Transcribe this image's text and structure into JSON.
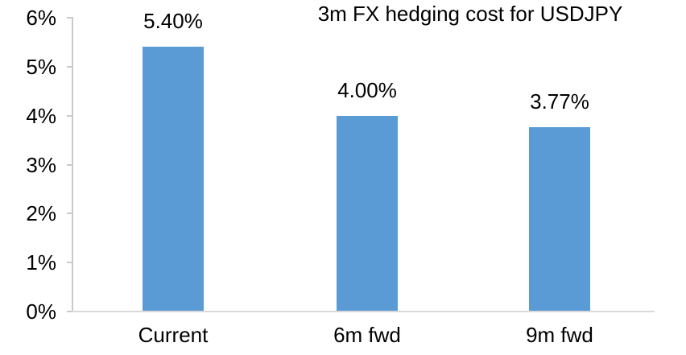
{
  "chart_data": {
    "type": "bar",
    "title": "3m FX hedging cost for USDJPY",
    "categories": [
      "Current",
      "6m fwd",
      "9m fwd"
    ],
    "values": [
      5.4,
      4.0,
      3.77
    ],
    "data_labels": [
      "5.40%",
      "4.00%",
      "3.77%"
    ],
    "xlabel": "",
    "ylabel": "",
    "y_axis": {
      "tick_labels": [
        "0%",
        "1%",
        "2%",
        "3%",
        "4%",
        "5%",
        "6%"
      ],
      "min": 0,
      "max": 6
    },
    "grid": "off",
    "legend": "none",
    "colors": {
      "bar": "#5B9BD5",
      "axis_line": "#C9C9C9",
      "baseline": "#D9D9D9",
      "text": "#000000",
      "background": "#FFFFFF"
    }
  }
}
